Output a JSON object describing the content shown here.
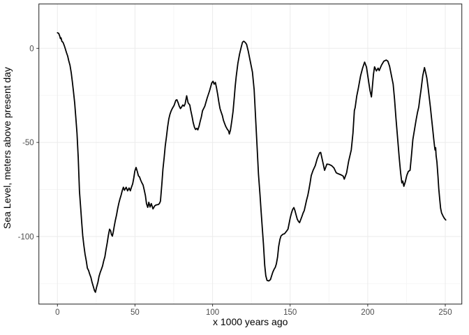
{
  "chart_data": {
    "type": "line",
    "title": "",
    "xlabel": "x 1000 years ago",
    "ylabel": "Sea Level, meters above present day",
    "xlim": [
      -11.97,
      260.66
    ],
    "ylim": [
      -135.9,
      23.6
    ],
    "x_ticks": [
      0,
      50,
      100,
      150,
      200,
      250
    ],
    "y_ticks": [
      0,
      -50,
      -100
    ],
    "x_minor_ticks": [
      25,
      75,
      125,
      175,
      225
    ],
    "y_minor_ticks": [
      -25,
      -75,
      -125
    ],
    "grid": true,
    "legend": false,
    "colors": {
      "line": "#000000",
      "grid_major": "#ebebeb",
      "grid_minor": "#f2f2f2",
      "panel_border": "#333333",
      "tick_mark": "#333333",
      "tick_label": "#4d4d4d",
      "background": "#ffffff"
    },
    "series": [
      {
        "name": "sea-level",
        "points": [
          [
            0,
            8.3
          ],
          [
            0.8,
            8
          ],
          [
            1.5,
            6.5
          ],
          [
            1.9,
            5.2
          ],
          [
            2.3,
            5.6
          ],
          [
            2.9,
            3.7
          ],
          [
            3.6,
            3.2
          ],
          [
            4.4,
            1.5
          ],
          [
            5.1,
            -0.3
          ],
          [
            5.8,
            -2.2
          ],
          [
            6.6,
            -4.1
          ],
          [
            7.3,
            -6.6
          ],
          [
            8.1,
            -9
          ],
          [
            8.9,
            -13
          ],
          [
            9.6,
            -17.7
          ],
          [
            10.3,
            -22.7
          ],
          [
            11.1,
            -28.9
          ],
          [
            11.8,
            -36.3
          ],
          [
            12.6,
            -45
          ],
          [
            13.4,
            -58
          ],
          [
            14.2,
            -76
          ],
          [
            15,
            -85
          ],
          [
            15.6,
            -92
          ],
          [
            16.3,
            -99.5
          ],
          [
            17,
            -104.5
          ],
          [
            17.8,
            -109.4
          ],
          [
            18.6,
            -113
          ],
          [
            19.3,
            -116.8
          ],
          [
            20.1,
            -118.1
          ],
          [
            20.8,
            -120
          ],
          [
            21.6,
            -121.8
          ],
          [
            22.3,
            -124.3
          ],
          [
            23.1,
            -126.5
          ],
          [
            23.9,
            -128.8
          ],
          [
            24.5,
            -129.6
          ],
          [
            25.2,
            -127
          ],
          [
            26.1,
            -124.3
          ],
          [
            26.8,
            -121.2
          ],
          [
            27.6,
            -119
          ],
          [
            28.3,
            -117.5
          ],
          [
            29.1,
            -115.6
          ],
          [
            29.8,
            -113
          ],
          [
            30.6,
            -110.7
          ],
          [
            31.3,
            -107
          ],
          [
            32.1,
            -103.3
          ],
          [
            32.8,
            -99.5
          ],
          [
            33.6,
            -96.1
          ],
          [
            34.3,
            -97
          ],
          [
            34.8,
            -98.9
          ],
          [
            35.4,
            -99.8
          ],
          [
            36,
            -97.5
          ],
          [
            36.6,
            -94.6
          ],
          [
            37.3,
            -91.5
          ],
          [
            38.1,
            -88.5
          ],
          [
            38.8,
            -85.3
          ],
          [
            39.6,
            -82.2
          ],
          [
            40.3,
            -80
          ],
          [
            41.1,
            -77.8
          ],
          [
            41.8,
            -75.5
          ],
          [
            42.5,
            -73.8
          ],
          [
            43.2,
            -75.4
          ],
          [
            44.3,
            -73.8
          ],
          [
            45.2,
            -75.7
          ],
          [
            46.2,
            -74.2
          ],
          [
            47,
            -75.7
          ],
          [
            47.7,
            -73.8
          ],
          [
            48.5,
            -72
          ],
          [
            49.2,
            -68.9
          ],
          [
            49.9,
            -65.2
          ],
          [
            50.7,
            -63.3
          ],
          [
            51.4,
            -65.2
          ],
          [
            52.2,
            -67.7
          ],
          [
            52.9,
            -68.3
          ],
          [
            53.7,
            -70.1
          ],
          [
            54.4,
            -71.4
          ],
          [
            55.2,
            -72.6
          ],
          [
            55.9,
            -75.1
          ],
          [
            56.7,
            -78.2
          ],
          [
            57.4,
            -82.5
          ],
          [
            58.2,
            -84.5
          ],
          [
            58.9,
            -81.8
          ],
          [
            59.7,
            -84.3
          ],
          [
            60.5,
            -82.5
          ],
          [
            61.6,
            -85.3
          ],
          [
            62.7,
            -83.7
          ],
          [
            63.4,
            -83.3
          ],
          [
            64.2,
            -83.1
          ],
          [
            65,
            -83
          ],
          [
            65.7,
            -82.5
          ],
          [
            66.4,
            -81.2
          ],
          [
            67.3,
            -72.2
          ],
          [
            68,
            -64.2
          ],
          [
            68.8,
            -58
          ],
          [
            69.5,
            -51.8
          ],
          [
            70.3,
            -46.8
          ],
          [
            71,
            -41.9
          ],
          [
            71.8,
            -37.5
          ],
          [
            72.5,
            -35.1
          ],
          [
            73.3,
            -33.2
          ],
          [
            74,
            -32
          ],
          [
            75.2,
            -30.3
          ],
          [
            76.3,
            -27.6
          ],
          [
            77,
            -27.3
          ],
          [
            77.8,
            -28.9
          ],
          [
            78.5,
            -30.7
          ],
          [
            79.3,
            -32
          ],
          [
            80,
            -31.2
          ],
          [
            80.8,
            -30.1
          ],
          [
            81.6,
            -30.7
          ],
          [
            82.3,
            -29.5
          ],
          [
            83.3,
            -25.2
          ],
          [
            84.2,
            -28.9
          ],
          [
            85.3,
            -30.1
          ],
          [
            86,
            -33.2
          ],
          [
            86.8,
            -36.3
          ],
          [
            87.5,
            -39.4
          ],
          [
            88.3,
            -41.9
          ],
          [
            89,
            -43.1
          ],
          [
            89.8,
            -42.5
          ],
          [
            90.5,
            -43.3
          ],
          [
            91.3,
            -41.3
          ],
          [
            92,
            -38.8
          ],
          [
            92.8,
            -36.3
          ],
          [
            93.5,
            -33.2
          ],
          [
            95,
            -30.7
          ],
          [
            96.5,
            -26.4
          ],
          [
            98,
            -22.7
          ],
          [
            99.5,
            -18.3
          ],
          [
            100.3,
            -17.5
          ],
          [
            101,
            -19
          ],
          [
            101.8,
            -18.1
          ],
          [
            102.5,
            -20.8
          ],
          [
            103.3,
            -24.5
          ],
          [
            104,
            -28.3
          ],
          [
            104.8,
            -32
          ],
          [
            105.5,
            -33.8
          ],
          [
            106.3,
            -35.7
          ],
          [
            107,
            -38.2
          ],
          [
            107.8,
            -40
          ],
          [
            108.5,
            -41.5
          ],
          [
            109.5,
            -43
          ],
          [
            110.3,
            -43.8
          ],
          [
            110.8,
            -45.5
          ],
          [
            111.5,
            -43.5
          ],
          [
            112.4,
            -38.5
          ],
          [
            113.2,
            -33.5
          ],
          [
            114,
            -26
          ],
          [
            114.6,
            -20
          ],
          [
            115.2,
            -15.2
          ],
          [
            116.3,
            -8
          ],
          [
            117.4,
            -3
          ],
          [
            118.5,
            0.8
          ],
          [
            119.3,
            3.3
          ],
          [
            120.1,
            3.8
          ],
          [
            121,
            3.2
          ],
          [
            121.9,
            2.2
          ],
          [
            123,
            -1.5
          ],
          [
            124.2,
            -6.5
          ],
          [
            125.7,
            -12.6
          ],
          [
            126.8,
            -22
          ],
          [
            127.8,
            -38
          ],
          [
            128.8,
            -54
          ],
          [
            129.6,
            -67
          ],
          [
            130.6,
            -78.1
          ],
          [
            131.3,
            -86.8
          ],
          [
            132.1,
            -96.1
          ],
          [
            132.8,
            -104.1
          ],
          [
            133.6,
            -115.2
          ],
          [
            134.3,
            -120.8
          ],
          [
            135.1,
            -123.3
          ],
          [
            136.2,
            -123.6
          ],
          [
            137.3,
            -122.9
          ],
          [
            138.1,
            -120.8
          ],
          [
            138.8,
            -119
          ],
          [
            139.6,
            -117.5
          ],
          [
            140.4,
            -116.4
          ],
          [
            141.1,
            -114.6
          ],
          [
            141.9,
            -110.9
          ],
          [
            142.6,
            -105.3
          ],
          [
            143.4,
            -101.6
          ],
          [
            144.1,
            -99.7
          ],
          [
            145.3,
            -98.8
          ],
          [
            146.4,
            -98.5
          ],
          [
            147.9,
            -96.9
          ],
          [
            148.6,
            -96.1
          ],
          [
            150.1,
            -89.9
          ],
          [
            150.9,
            -87.4
          ],
          [
            151.6,
            -85.6
          ],
          [
            152.4,
            -84.6
          ],
          [
            153.1,
            -86.2
          ],
          [
            153.9,
            -88.7
          ],
          [
            154.6,
            -90.8
          ],
          [
            155.4,
            -92
          ],
          [
            156.1,
            -92.6
          ],
          [
            157.6,
            -89.3
          ],
          [
            158.4,
            -87.4
          ],
          [
            159.1,
            -86.2
          ],
          [
            160.6,
            -80.6
          ],
          [
            161.4,
            -78.1
          ],
          [
            162.1,
            -75.1
          ],
          [
            162.9,
            -71.3
          ],
          [
            163.6,
            -67.6
          ],
          [
            164.7,
            -65
          ],
          [
            166.2,
            -62.3
          ],
          [
            167.5,
            -58.5
          ],
          [
            169,
            -55.5
          ],
          [
            169.7,
            -55.3
          ],
          [
            171.4,
            -61.7
          ],
          [
            172.2,
            -64.8
          ],
          [
            173.7,
            -61.5
          ],
          [
            175.2,
            -61.7
          ],
          [
            176.7,
            -62.3
          ],
          [
            178.2,
            -63.5
          ],
          [
            179.7,
            -66.1
          ],
          [
            181.2,
            -66.7
          ],
          [
            183,
            -67.3
          ],
          [
            184.2,
            -67.9
          ],
          [
            184.9,
            -69.5
          ],
          [
            186.4,
            -66.1
          ],
          [
            187.7,
            -60
          ],
          [
            189.4,
            -54
          ],
          [
            190.5,
            -45
          ],
          [
            191.4,
            -33
          ],
          [
            191.9,
            -31.5
          ],
          [
            192.9,
            -25.5
          ],
          [
            193.9,
            -21.4
          ],
          [
            195.4,
            -14.6
          ],
          [
            196.7,
            -10.5
          ],
          [
            198,
            -7.3
          ],
          [
            199.2,
            -9.9
          ],
          [
            200.7,
            -18.2
          ],
          [
            201.5,
            -22.5
          ],
          [
            202.4,
            -25.8
          ],
          [
            203,
            -20.5
          ],
          [
            203.7,
            -13.9
          ],
          [
            204.4,
            -9.8
          ],
          [
            205.6,
            -12
          ],
          [
            206.7,
            -10.5
          ],
          [
            207.4,
            -11.8
          ],
          [
            208.9,
            -8.9
          ],
          [
            210.4,
            -6.8
          ],
          [
            211.9,
            -6.2
          ],
          [
            213,
            -6.8
          ],
          [
            214.1,
            -9.5
          ],
          [
            215.6,
            -15.7
          ],
          [
            216.4,
            -19
          ],
          [
            217.3,
            -27
          ],
          [
            218.2,
            -37
          ],
          [
            219.3,
            -48
          ],
          [
            220.3,
            -58
          ],
          [
            221.2,
            -66
          ],
          [
            222,
            -71.5
          ],
          [
            222.6,
            -70.5
          ],
          [
            223.3,
            -73.3
          ],
          [
            224.2,
            -71
          ],
          [
            225.2,
            -67.5
          ],
          [
            226.2,
            -65.4
          ],
          [
            227.3,
            -64.8
          ],
          [
            228.2,
            -57
          ],
          [
            229.1,
            -48.5
          ],
          [
            230.2,
            -43
          ],
          [
            231.2,
            -38
          ],
          [
            232.1,
            -34
          ],
          [
            232.9,
            -31.2
          ],
          [
            233.7,
            -26
          ],
          [
            234.4,
            -21.9
          ],
          [
            235.5,
            -14.5
          ],
          [
            236.6,
            -10.2
          ],
          [
            237.4,
            -13
          ],
          [
            238.1,
            -15.7
          ],
          [
            238.9,
            -20.7
          ],
          [
            239.6,
            -25.6
          ],
          [
            240.4,
            -31.2
          ],
          [
            241.1,
            -36.7
          ],
          [
            241.9,
            -42.9
          ],
          [
            242.6,
            -48.5
          ],
          [
            243.1,
            -52.2
          ],
          [
            243.4,
            -54
          ],
          [
            243.8,
            -52.8
          ],
          [
            244.1,
            -57.1
          ],
          [
            244.6,
            -60.2
          ],
          [
            245.3,
            -68
          ],
          [
            245.8,
            -74.5
          ],
          [
            246.4,
            -80
          ],
          [
            247,
            -85
          ],
          [
            247.6,
            -87.4
          ],
          [
            248.5,
            -89
          ],
          [
            249.4,
            -90.3
          ],
          [
            250.3,
            -91.2
          ]
        ]
      }
    ]
  }
}
